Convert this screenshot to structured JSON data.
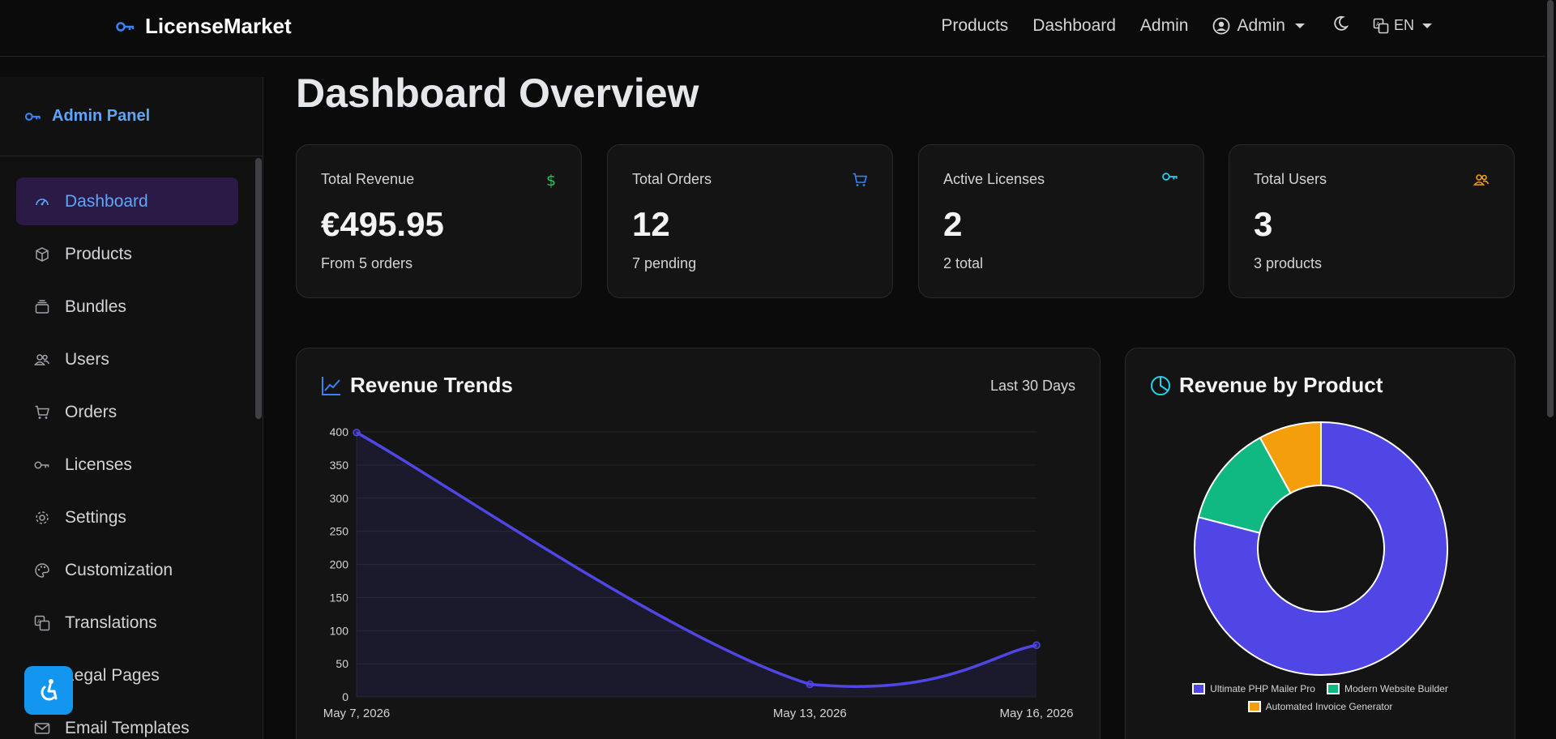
{
  "brand": {
    "name": "LicenseMarket"
  },
  "nav": {
    "links": [
      "Products",
      "Dashboard",
      "Admin"
    ],
    "user_label": "Admin",
    "lang": "EN"
  },
  "sidebar": {
    "title": "Admin Panel",
    "items": [
      {
        "label": "Dashboard",
        "icon": "gauge-icon",
        "active": true
      },
      {
        "label": "Products",
        "icon": "box-icon"
      },
      {
        "label": "Bundles",
        "icon": "stack-icon"
      },
      {
        "label": "Users",
        "icon": "users-icon"
      },
      {
        "label": "Orders",
        "icon": "cart-icon"
      },
      {
        "label": "Licenses",
        "icon": "key-icon"
      },
      {
        "label": "Settings",
        "icon": "gear-icon"
      },
      {
        "label": "Customization",
        "icon": "palette-icon"
      },
      {
        "label": "Translations",
        "icon": "translate-icon"
      },
      {
        "label": "Legal Pages",
        "icon": "document-icon"
      },
      {
        "label": "Email Templates",
        "icon": "envelope-icon"
      }
    ]
  },
  "page": {
    "title": "Dashboard Overview"
  },
  "stats": [
    {
      "label": "Total Revenue",
      "value": "€495.95",
      "sub": "From 5 orders",
      "icon": "dollar-icon",
      "color": "#22c55e"
    },
    {
      "label": "Total Orders",
      "value": "12",
      "sub": "7 pending",
      "icon": "cart-icon",
      "color": "#3b82f6"
    },
    {
      "label": "Active Licenses",
      "value": "2",
      "sub": "2 total",
      "icon": "key-icon",
      "color": "#22d3ee"
    },
    {
      "label": "Total Users",
      "value": "3",
      "sub": "3 products",
      "icon": "users-icon",
      "color": "#f59e0b"
    }
  ],
  "revenue_panel": {
    "title": "Revenue Trends",
    "range": "Last 30 Days"
  },
  "product_panel": {
    "title": "Revenue by Product"
  },
  "chart_data": [
    {
      "type": "line",
      "x": [
        "May 7, 2026",
        "May 13, 2026",
        "May 16, 2026"
      ],
      "series": [
        {
          "values": [
            399,
            19,
            78
          ],
          "color": "#4f46e5"
        }
      ],
      "ylim": [
        0,
        400
      ],
      "yticks": [
        0,
        50,
        100,
        150,
        200,
        250,
        300,
        350,
        400
      ],
      "grid": true,
      "fill": true
    },
    {
      "type": "pie",
      "variant": "doughnut",
      "labels": [
        "Ultimate PHP Mailer Pro",
        "Modern Website Builder",
        "Automated Invoice Generator"
      ],
      "values": [
        79,
        13,
        8
      ],
      "colors": [
        "#4f46e5",
        "#10b981",
        "#f59e0b"
      ],
      "legend": "bottom"
    }
  ]
}
